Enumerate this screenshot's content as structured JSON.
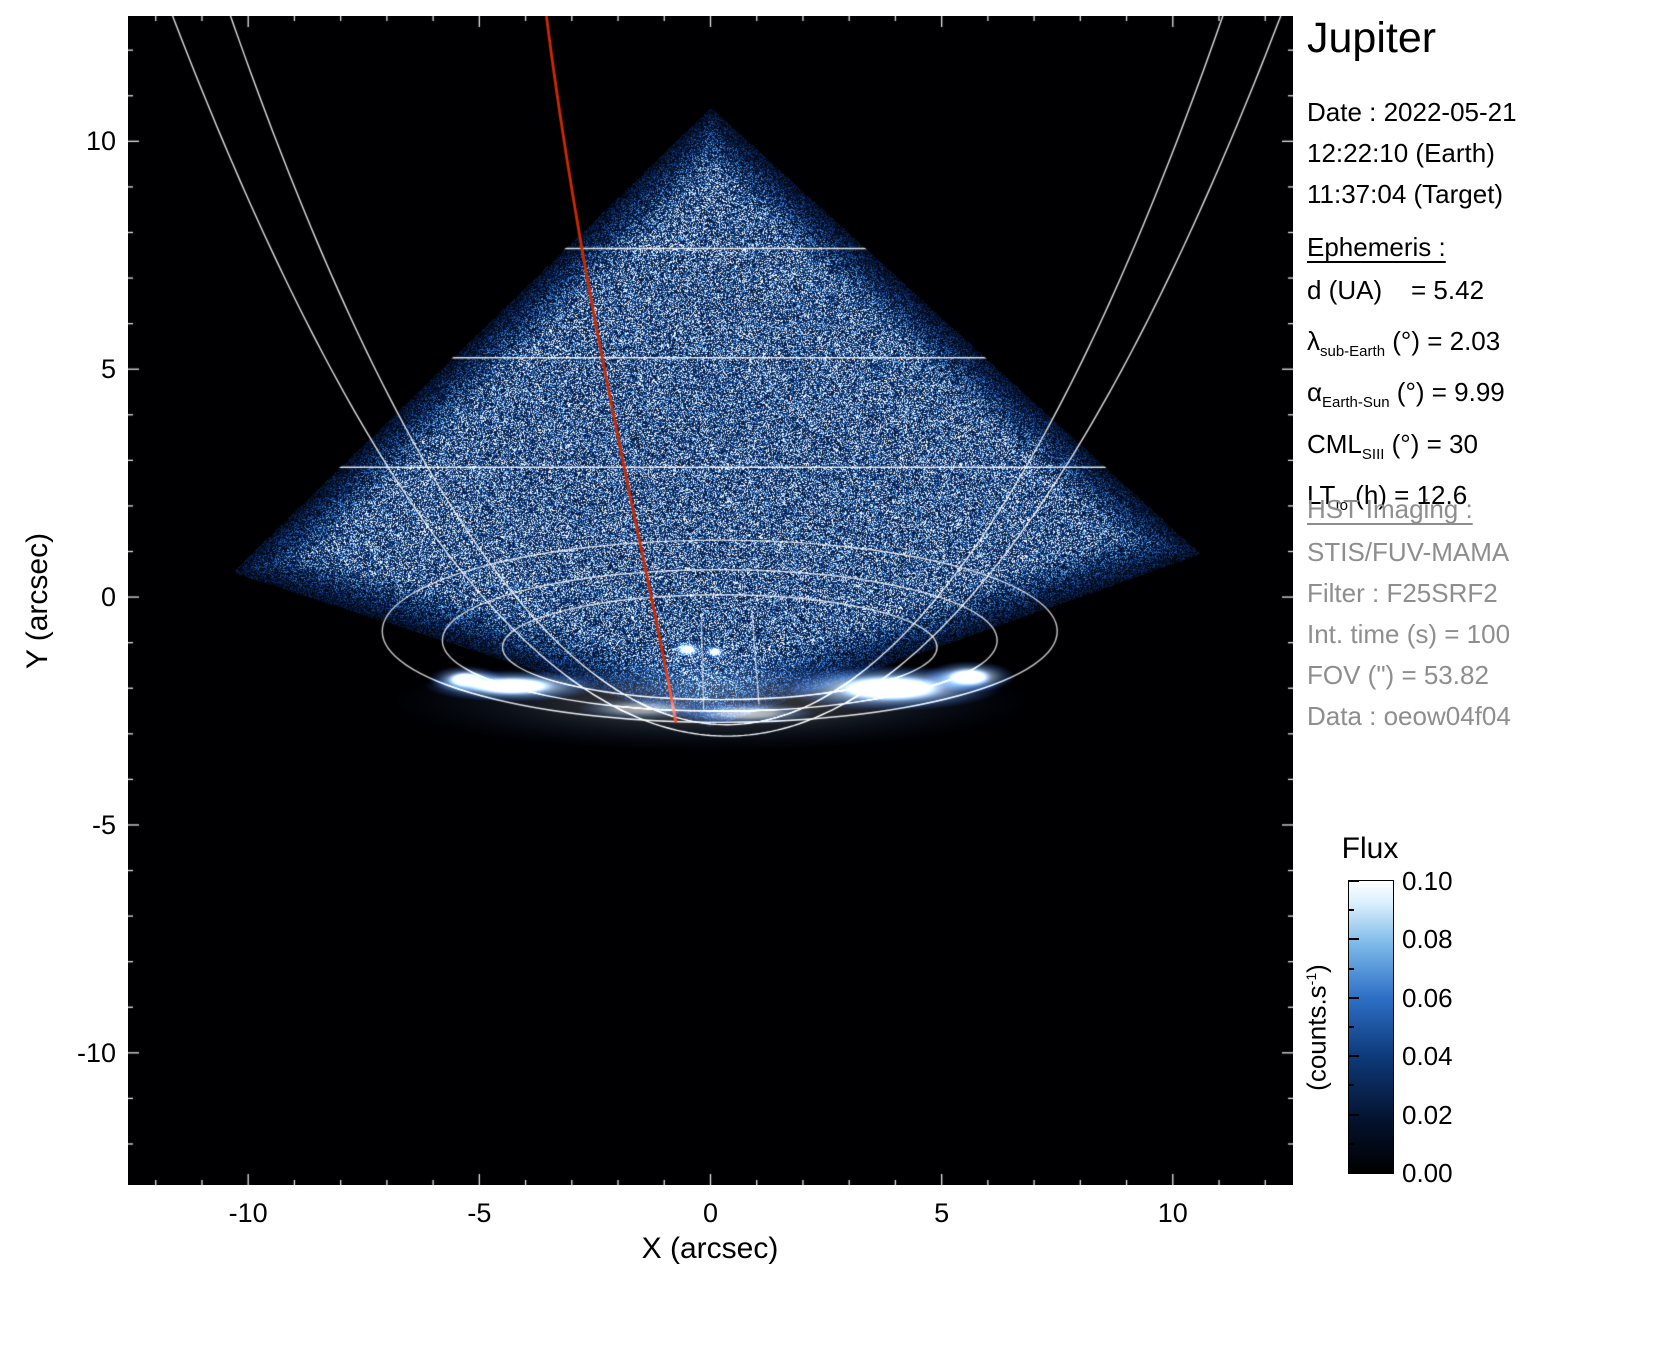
{
  "chart_data": {
    "type": "heatmap",
    "title": "Jupiter",
    "xlabel": "X (arcsec)",
    "ylabel": "Y (arcsec)",
    "xlim": [
      -12.6,
      12.6
    ],
    "ylim": [
      -12.9,
      12.75
    ],
    "x_ticks": [
      -10,
      -5,
      0,
      5,
      10
    ],
    "y_ticks": [
      10,
      5,
      0,
      -5,
      -10
    ],
    "grid": false,
    "description": "HST STIS far-UV image of Jupiter's aurora: blue speckled detector-noise wedge (apex up), bright white auroral oval emission near the limb around y = -2 arcsec, white planetocentric graticule arcs and a red central-meridian line.",
    "colormap": [
      [
        0,
        "#000000"
      ],
      [
        0.3,
        "#0a2a66"
      ],
      [
        0.55,
        "#2e6fc6"
      ],
      [
        0.78,
        "#8cc4ec"
      ],
      [
        1,
        "#ffffff"
      ]
    ],
    "colorbar": {
      "title": "Flux",
      "unit_pre": "(counts.s",
      "unit_sup": "-1",
      "unit_post": ")",
      "ticks": [
        "0.10",
        "0.08",
        "0.06",
        "0.04",
        "0.02",
        "0.00"
      ],
      "range": [
        0,
        0.1
      ]
    },
    "features": {
      "wedge": [
        [
          0,
          10.75
        ],
        [
          10.6,
          0.95
        ],
        [
          0,
          -2.85
        ],
        [
          -10.35,
          0.55
        ]
      ],
      "limb_parabolas": [
        {
          "x0": 0.35,
          "c": -3.05,
          "a": 0.11
        },
        {
          "x0": 0.35,
          "c": -2.8,
          "a": 0.135
        }
      ],
      "lat_lines": [
        7.65,
        5.25,
        2.85
      ],
      "ovals": [
        {
          "cx": 0.2,
          "cy": -0.75,
          "rx": 7.3,
          "ry": 2.0
        },
        {
          "cx": 0.2,
          "cy": -0.95,
          "rx": 6.0,
          "ry": 1.55
        },
        {
          "cx": 0.2,
          "cy": -1.1,
          "rx": 4.7,
          "ry": 1.15
        }
      ],
      "meridian_segs": [
        [
          0.9,
          -0.35,
          1.05,
          -2.35
        ],
        [
          -0.2,
          -0.35,
          -0.15,
          -2.45
        ]
      ],
      "red_line": {
        "p0": [
          -3.55,
          12.75
        ],
        "c1": [
          -2.7,
          6.0
        ],
        "c2": [
          -1.3,
          0.5
        ],
        "p1": [
          -0.75,
          -2.75
        ],
        "color": "#cc2a00"
      },
      "aurora_blobs": [
        {
          "cx": 0.0,
          "cy": -2.3,
          "rx": 7.0,
          "ry": 1.1,
          "i": 0.22
        },
        {
          "cx": 3.9,
          "cy": -2.0,
          "rx": 2.4,
          "ry": 0.5,
          "i": 1.0
        },
        {
          "cx": 5.6,
          "cy": -1.75,
          "rx": 1.0,
          "ry": 0.35,
          "i": 0.9
        },
        {
          "cx": -4.3,
          "cy": -1.95,
          "rx": 1.9,
          "ry": 0.35,
          "i": 0.95
        },
        {
          "cx": -5.3,
          "cy": -1.8,
          "rx": 0.8,
          "ry": 0.3,
          "i": 0.8
        },
        {
          "cx": -0.5,
          "cy": -1.15,
          "rx": 0.35,
          "ry": 0.18,
          "i": 0.9
        },
        {
          "cx": 0.1,
          "cy": -1.2,
          "rx": 0.25,
          "ry": 0.15,
          "i": 0.8
        },
        {
          "cx": -1.5,
          "cy": -2.45,
          "rx": 1.4,
          "ry": 0.25,
          "i": 0.5
        },
        {
          "cx": 0.8,
          "cy": -2.55,
          "rx": 1.5,
          "ry": 0.25,
          "i": 0.6
        }
      ]
    }
  },
  "panel": {
    "title": "Jupiter",
    "observation": [
      "Date : 2022-05-21",
      "12:22:10 (Earth)",
      "11:37:04 (Target)"
    ],
    "ephemeris_header": "Ephemeris :",
    "ephemeris": [
      {
        "lead": "d (UA)",
        "sub": "",
        "tail": "    = 5.42"
      },
      {
        "lead": "λ",
        "sub": "sub-Earth",
        "tail": " (°) = 2.03"
      },
      {
        "lead": "α",
        "sub": "Earth-Sun",
        "tail": " (°) = 9.99"
      },
      {
        "lead": "CML",
        "sub": "SIII",
        "tail": " (°) = 30"
      },
      {
        "lead": "LT",
        "sub": "Io",
        "tail": " (h) = 12.6"
      }
    ],
    "hst_header": "HST Imaging :",
    "hst": [
      "STIS/FUV-MAMA",
      "Filter : F25SRF2",
      "Int. time (s) = 100",
      "FOV (\") = 53.82",
      "Data : oeow04f04"
    ]
  }
}
